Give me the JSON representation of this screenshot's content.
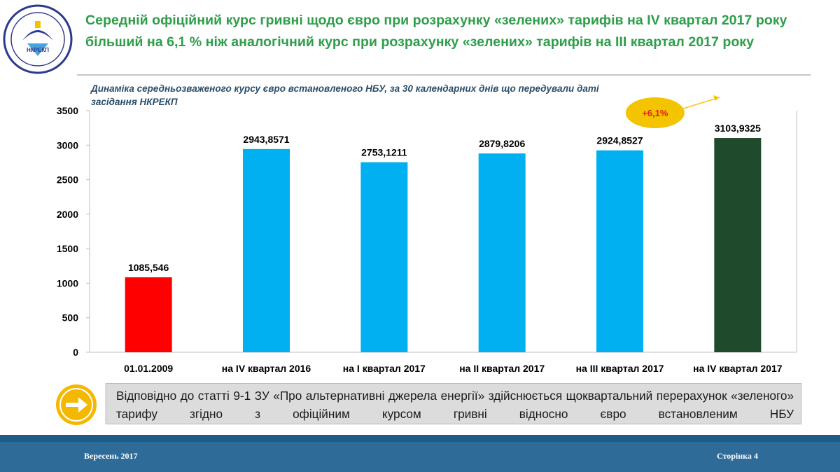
{
  "slide": {
    "title": "Середній офіційний курс гривні щодо євро при розрахунку «зелених» тарифів на IV квартал 2017 року більший на 6,1 % ніж аналогічний курс при розрахунку «зелених» тарифів на III квартал 2017 року",
    "logo_text": "НКРЕКП"
  },
  "chart_data": {
    "type": "bar",
    "subtitle_lines": [
      "Динаміка середньозваженого курсу євро встановленого НБУ, за 30 календарних днів що передували даті",
      "засідання НКРЕКП"
    ],
    "categories": [
      "01.01.2009",
      "на IV квартал 2016",
      "на I квартал 2017",
      "на II квартал 2017",
      "на III квартал 2017",
      "на IV квартал 2017"
    ],
    "values": [
      1085.546,
      2943.8571,
      2753.1211,
      2879.8206,
      2924.8527,
      3103.9325
    ],
    "value_labels": [
      "1085,546",
      "2943,8571",
      "2753,1211",
      "2879,8206",
      "2924,8527",
      "3103,9325"
    ],
    "colors": [
      "#ff0000",
      "#00b0f0",
      "#00b0f0",
      "#00b0f0",
      "#00b0f0",
      "#1f4a2c"
    ],
    "ylim": [
      0,
      3500
    ],
    "yticks": [
      0,
      500,
      1000,
      1500,
      2000,
      2500,
      3000,
      3500
    ],
    "annotation": {
      "text": "+6,1%",
      "fill": "#f5c400"
    },
    "grid": false,
    "legend": "none",
    "xlabel": "",
    "ylabel": ""
  },
  "note": {
    "text": "Відповідно до статті 9-1 ЗУ «Про альтернативні джерела енергії» здійснюється щоквартальний перерахунок «зеленого» тарифу згідно з офіційним курсом гривні відносно євро встановленим НБУ"
  },
  "footer": {
    "date": "Вересень 2017",
    "page": "Сторінка 4"
  },
  "colors": {
    "title_green": "#2e9e4a",
    "footer_blue": "#2f6b98",
    "arrow_yellow": "#f5b800"
  }
}
